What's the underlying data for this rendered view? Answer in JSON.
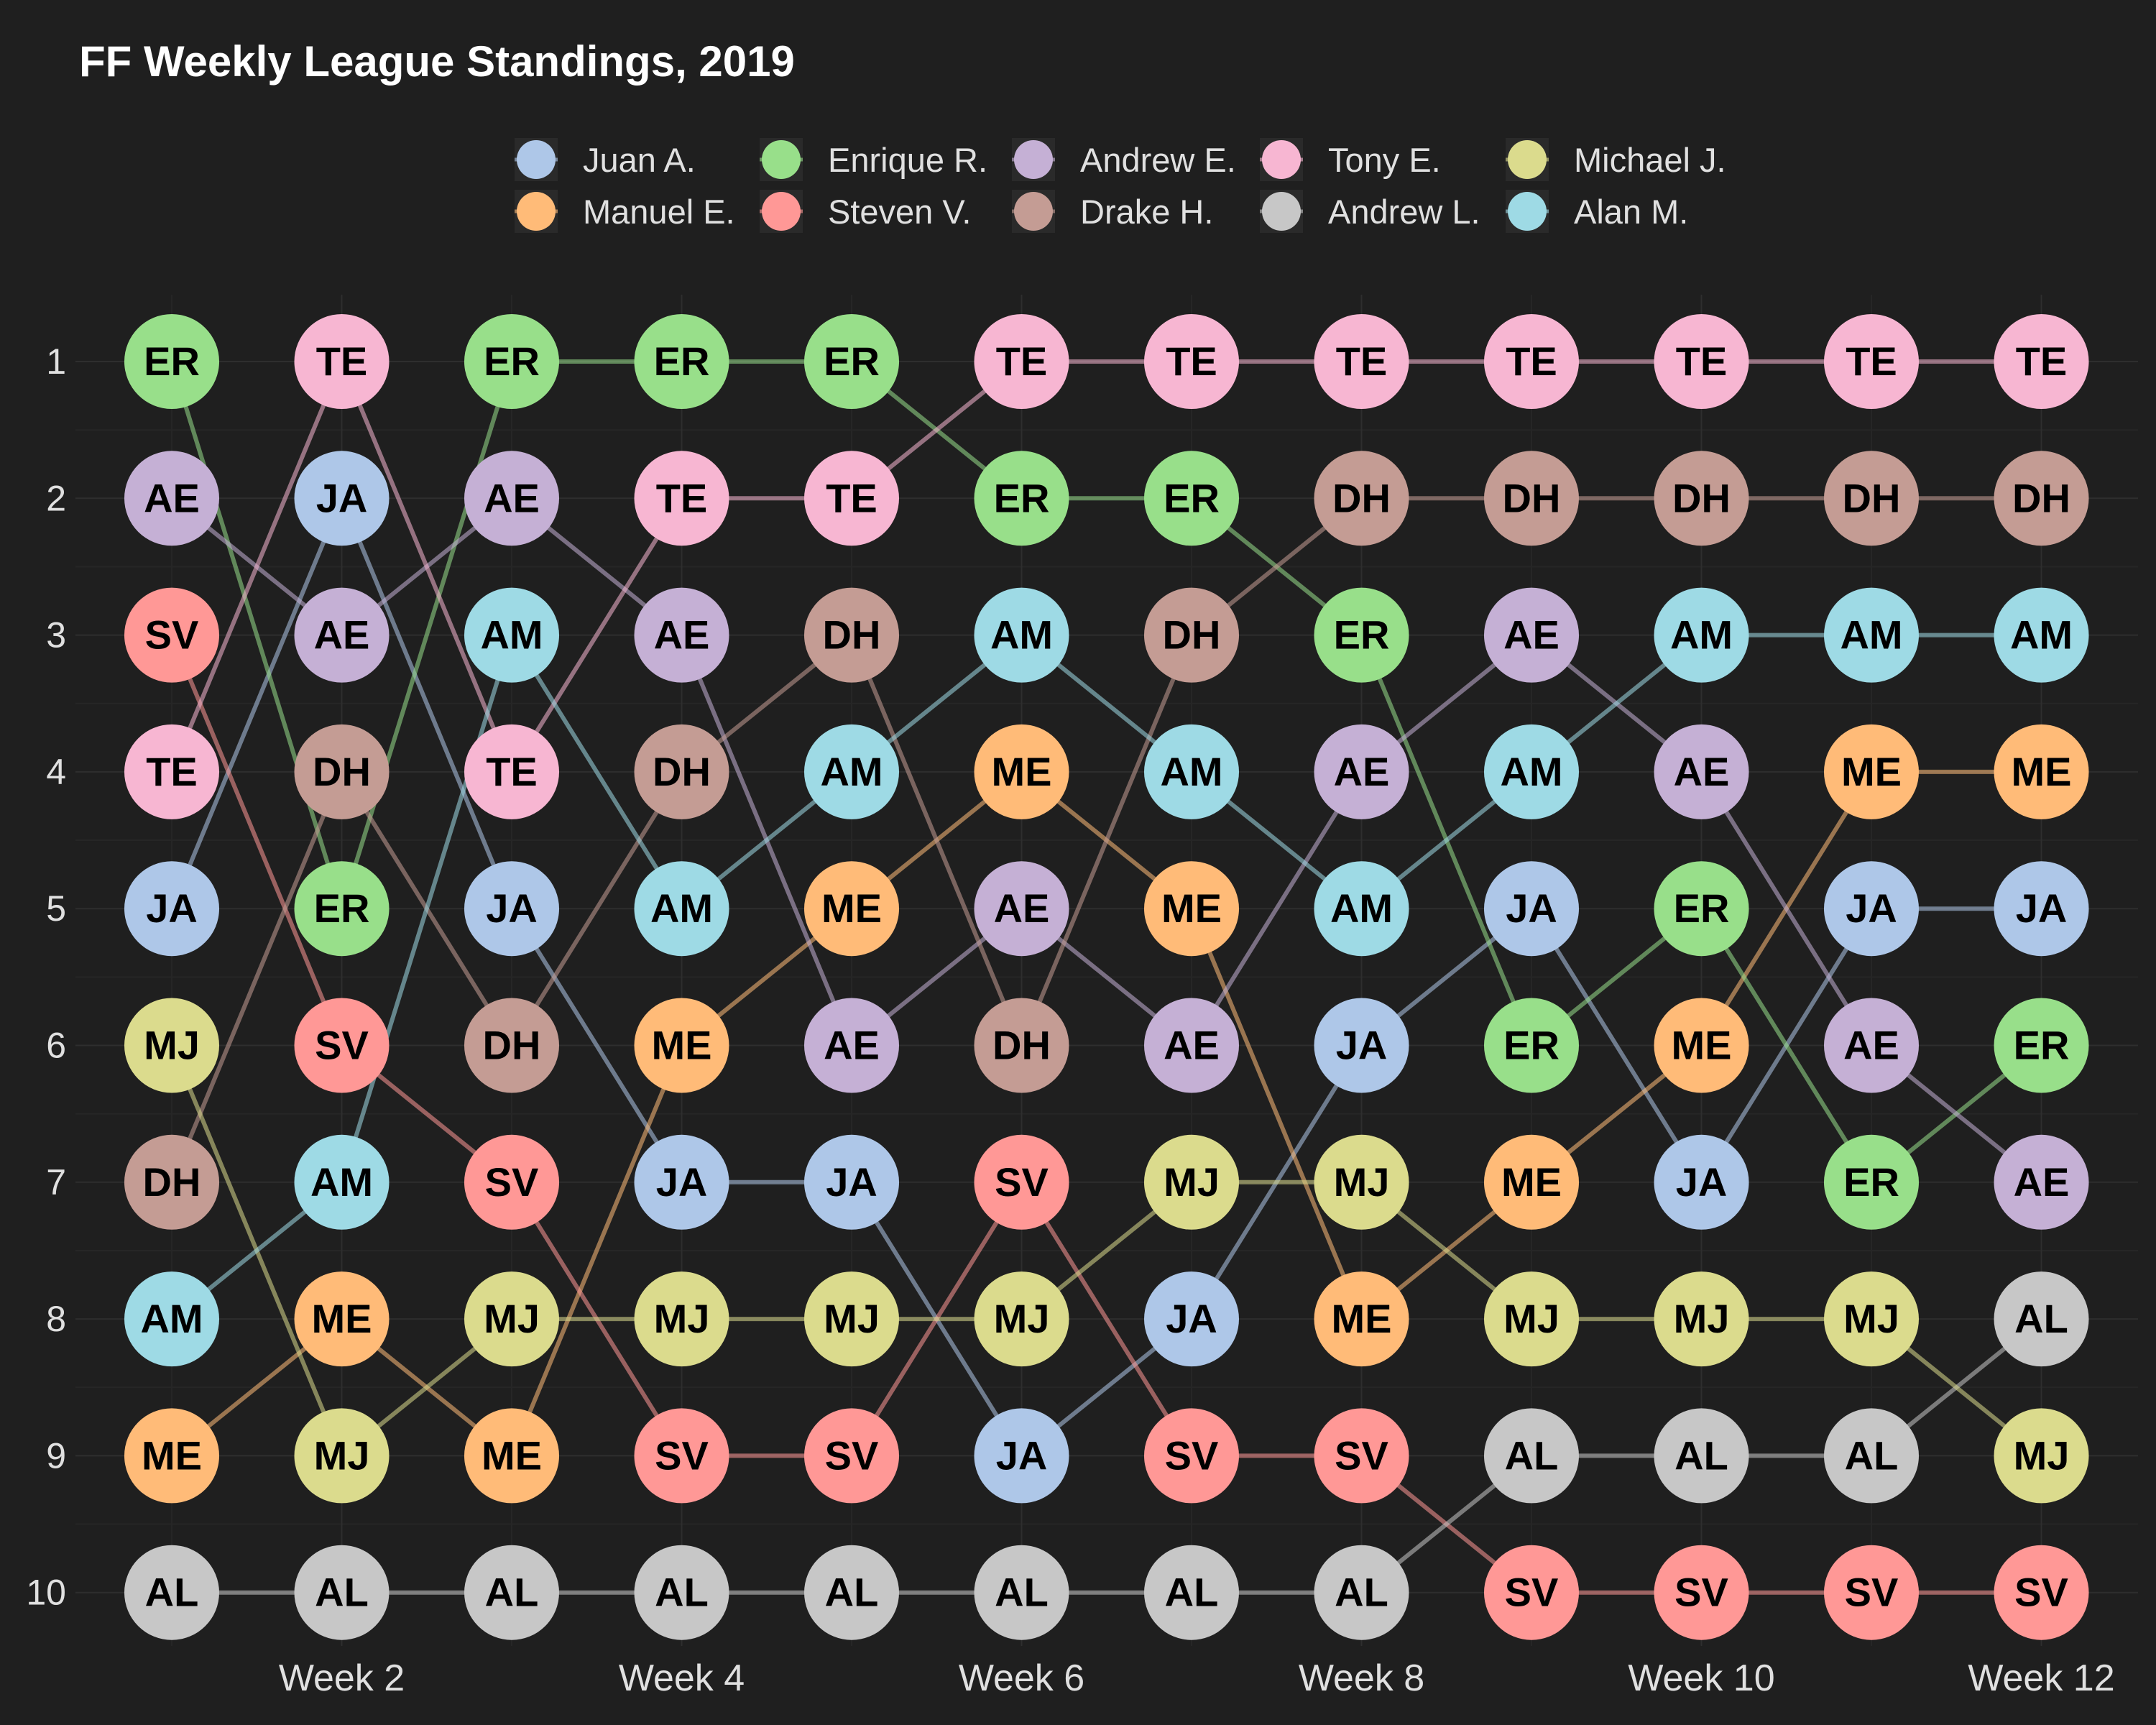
{
  "chart_data": {
    "type": "line",
    "title": "FF Weekly League Standings, 2019",
    "xlabel": "",
    "ylabel": "",
    "x_tick_labels": [
      "Week 2",
      "Week 4",
      "Week 6",
      "Week 8",
      "Week 10",
      "Week 12"
    ],
    "x_tick_weeks": [
      2,
      4,
      6,
      8,
      10,
      12
    ],
    "weeks": [
      1,
      2,
      3,
      4,
      5,
      6,
      7,
      8,
      9,
      10,
      11,
      12
    ],
    "y_ticks": [
      1,
      2,
      3,
      4,
      5,
      6,
      7,
      8,
      9,
      10
    ],
    "ylim": [
      1,
      10
    ],
    "y_reversed": true,
    "grid": true,
    "legend_position": "top",
    "series": [
      {
        "name": "Juan A.",
        "abbr": "JA",
        "color": "#aec7e8",
        "values": [
          5,
          2,
          5,
          7,
          7,
          9,
          8,
          6,
          5,
          7,
          5,
          5
        ]
      },
      {
        "name": "Manuel E.",
        "abbr": "ME",
        "color": "#ffbb78",
        "values": [
          9,
          8,
          9,
          6,
          5,
          4,
          5,
          8,
          7,
          6,
          4,
          4
        ]
      },
      {
        "name": "Enrique R.",
        "abbr": "ER",
        "color": "#98df8a",
        "values": [
          1,
          5,
          1,
          1,
          1,
          2,
          2,
          3,
          6,
          5,
          7,
          6
        ]
      },
      {
        "name": "Steven V.",
        "abbr": "SV",
        "color": "#ff9896",
        "values": [
          3,
          6,
          7,
          9,
          9,
          7,
          9,
          9,
          10,
          10,
          10,
          10
        ]
      },
      {
        "name": "Andrew E.",
        "abbr": "AE",
        "color": "#c5b0d5",
        "values": [
          2,
          3,
          2,
          3,
          6,
          5,
          6,
          4,
          3,
          4,
          6,
          7
        ]
      },
      {
        "name": "Drake H.",
        "abbr": "DH",
        "color": "#c49c94",
        "values": [
          7,
          4,
          6,
          4,
          3,
          6,
          3,
          2,
          2,
          2,
          2,
          2
        ]
      },
      {
        "name": "Tony E.",
        "abbr": "TE",
        "color": "#f7b6d2",
        "values": [
          4,
          1,
          4,
          2,
          2,
          1,
          1,
          1,
          1,
          1,
          1,
          1
        ]
      },
      {
        "name": "Andrew L.",
        "abbr": "AL",
        "color": "#c7c7c7",
        "values": [
          10,
          10,
          10,
          10,
          10,
          10,
          10,
          10,
          9,
          9,
          9,
          8
        ]
      },
      {
        "name": "Michael J.",
        "abbr": "MJ",
        "color": "#dbdb8d",
        "values": [
          6,
          9,
          8,
          8,
          8,
          8,
          7,
          7,
          8,
          8,
          8,
          9
        ]
      },
      {
        "name": "Alan M.",
        "abbr": "AM",
        "color": "#9edae5",
        "values": [
          8,
          7,
          3,
          5,
          4,
          3,
          4,
          5,
          4,
          3,
          3,
          3
        ]
      }
    ]
  },
  "colors": {
    "background": "#1f1f1f",
    "grid_major": "#2e2e2e",
    "grid_minor": "#262626",
    "text": "#ffffff",
    "tick_text": "#e0e0e0",
    "node_label": "#000000"
  }
}
